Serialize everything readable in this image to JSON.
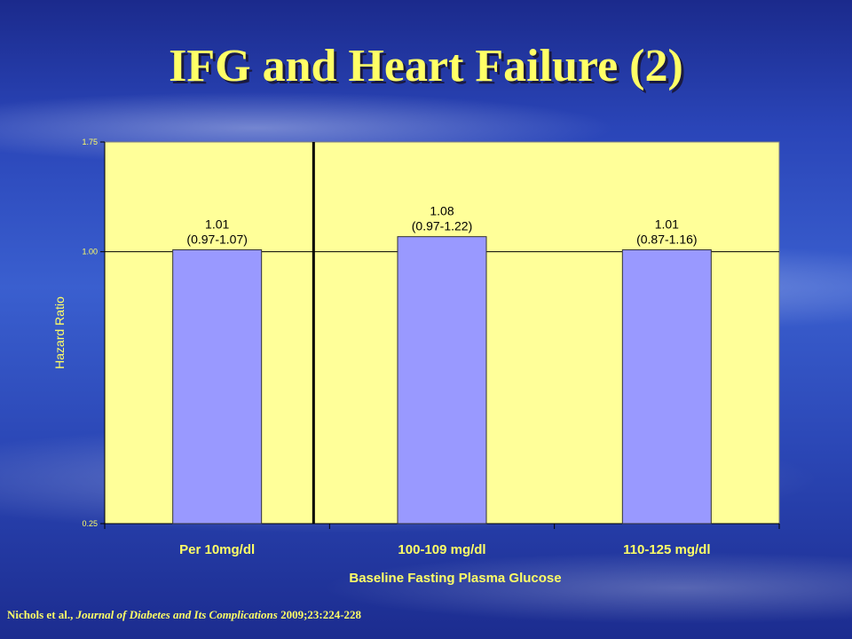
{
  "slide": {
    "title": "IFG and Heart Failure (2)",
    "citation": {
      "authors": "Nichols et al.,",
      "journal": "Journal of Diabetes and Its Complications",
      "ref": "2009;23:224-228"
    }
  },
  "colors": {
    "plot_bg": "#ffff99",
    "bar": "#9999ff",
    "text_accent": "#ffff66",
    "axis": "#000000"
  },
  "chart_data": {
    "type": "bar",
    "categories": [
      "Per 10mg/dl",
      "100-109 mg/dl",
      "110-125 mg/dl"
    ],
    "values": [
      1.01,
      1.08,
      1.01
    ],
    "label_values": [
      "1.01",
      "1.08",
      "1.01"
    ],
    "ci_labels": [
      "(0.97-1.07)",
      "(0.97-1.22)",
      "(0.87-1.16)"
    ],
    "xlabel": "Baseline Fasting Plasma Glucose",
    "ylabel": "Hazard Ratio",
    "ylim": [
      0.25,
      1.75
    ],
    "yscale": "log",
    "yticks": [
      0.25,
      1.0,
      1.75
    ],
    "ytick_labels": [
      "0.25",
      "1.00",
      "1.75"
    ],
    "grid": "horizontal at 1.00",
    "separator_after_category": 0
  }
}
